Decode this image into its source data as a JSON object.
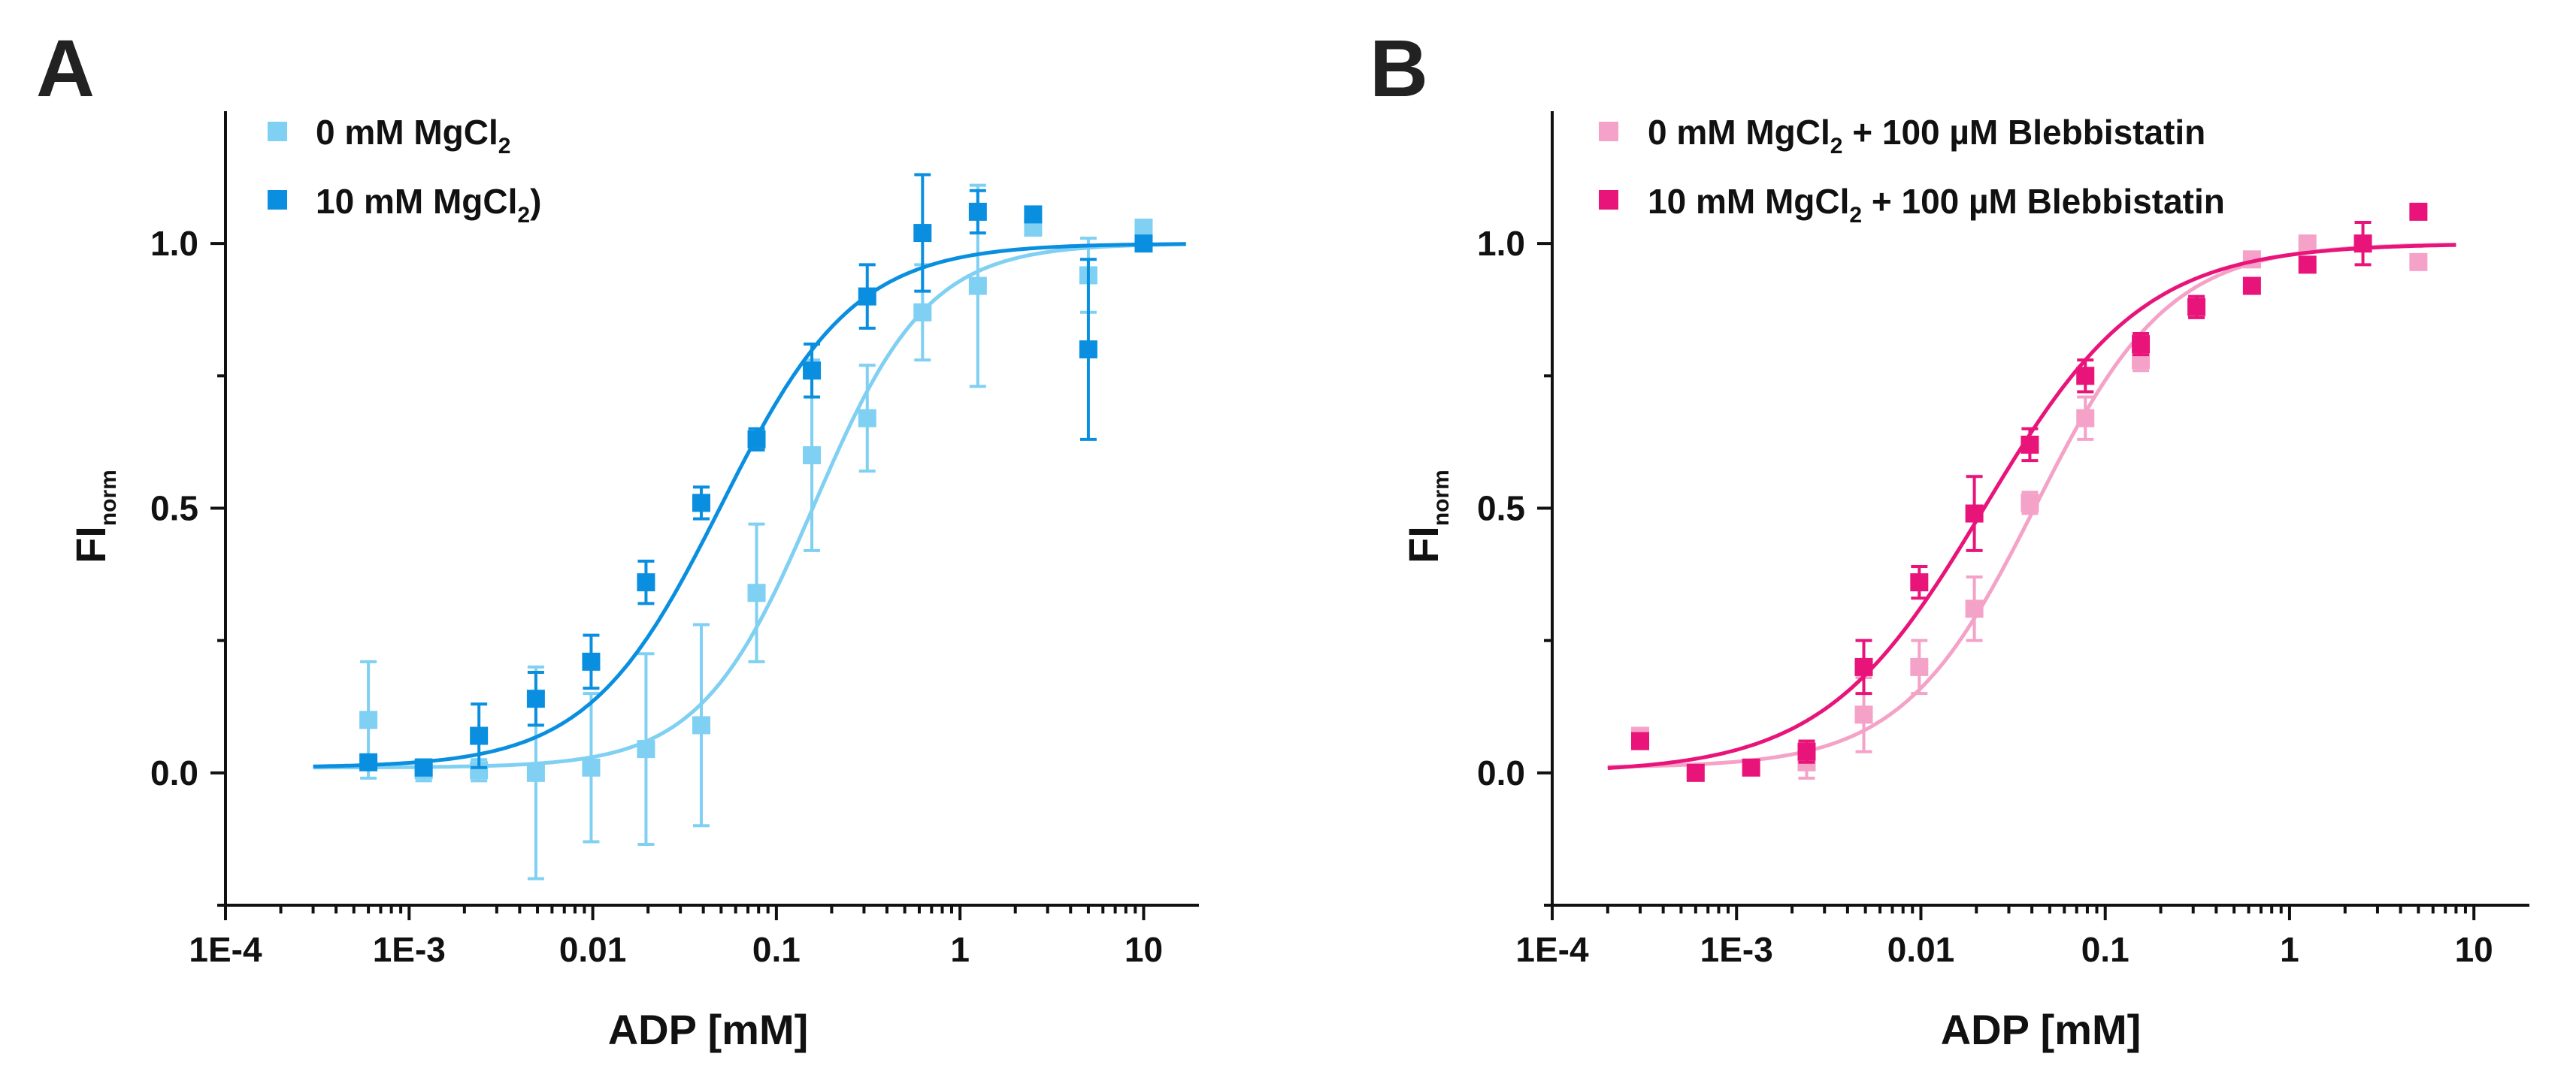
{
  "chart_data": [
    {
      "type": "scatter",
      "panel": "A",
      "xscale": "log",
      "xlim": [
        0.0001,
        20
      ],
      "ylim": [
        -0.25,
        1.25
      ],
      "xlabel": "ADP [mM]",
      "ylabel_main": "FI",
      "ylabel_sub": "norm",
      "xticks": [
        {
          "value": 0.0001,
          "label": "1E-4"
        },
        {
          "value": 0.001,
          "label": "1E-3"
        },
        {
          "value": 0.01,
          "label": "0.01"
        },
        {
          "value": 0.1,
          "label": "0.1"
        },
        {
          "value": 1,
          "label": "1"
        },
        {
          "value": 10,
          "label": "10"
        }
      ],
      "yticks": [
        {
          "value": 0.0,
          "label": "0.0"
        },
        {
          "value": 0.5,
          "label": "0.5"
        },
        {
          "value": 1.0,
          "label": "1.0"
        }
      ],
      "legend_position": "top-left",
      "series": [
        {
          "name": "0 mM MgCl2",
          "legend_parts": [
            "0 mM MgCl",
            "2",
            ""
          ],
          "color": "#7fd0f2",
          "fit": {
            "bottom": 0.01,
            "top": 1.0,
            "ec50": 0.16,
            "hill": 1.4,
            "x_from": 0.0003,
            "x_to": 17
          },
          "points": [
            {
              "x": 0.0006,
              "y": 0.1,
              "err": 0.11
            },
            {
              "x": 0.0012,
              "y": 0.005,
              "err": 0.02
            },
            {
              "x": 0.0024,
              "y": 0.005,
              "err": 0.02
            },
            {
              "x": 0.0049,
              "y": 0.0,
              "err": 0.2
            },
            {
              "x": 0.0098,
              "y": 0.01,
              "err": 0.14
            },
            {
              "x": 0.0195,
              "y": 0.045,
              "err": 0.18
            },
            {
              "x": 0.039,
              "y": 0.09,
              "err": 0.19
            },
            {
              "x": 0.078,
              "y": 0.34,
              "err": 0.13
            },
            {
              "x": 0.156,
              "y": 0.6,
              "err": 0.18
            },
            {
              "x": 0.3125,
              "y": 0.67,
              "err": 0.1
            },
            {
              "x": 0.625,
              "y": 0.87,
              "err": 0.09
            },
            {
              "x": 1.25,
              "y": 0.92,
              "err": 0.19
            },
            {
              "x": 2.5,
              "y": 1.03,
              "err": 0.0
            },
            {
              "x": 5.0,
              "y": 0.94,
              "err": 0.07
            },
            {
              "x": 10.0,
              "y": 1.03,
              "err": 0.0
            }
          ]
        },
        {
          "name": "10 mM MgCl2)",
          "legend_parts": [
            "10 mM MgCl",
            "2",
            ")"
          ],
          "color": "#0a8fe0",
          "fit": {
            "bottom": 0.01,
            "top": 1.0,
            "ec50": 0.05,
            "hill": 1.2,
            "x_from": 0.0003,
            "x_to": 17
          },
          "points": [
            {
              "x": 0.0006,
              "y": 0.02,
              "err": 0.0
            },
            {
              "x": 0.0012,
              "y": 0.01,
              "err": 0.0
            },
            {
              "x": 0.0024,
              "y": 0.07,
              "err": 0.06
            },
            {
              "x": 0.0049,
              "y": 0.14,
              "err": 0.05
            },
            {
              "x": 0.0098,
              "y": 0.21,
              "err": 0.05
            },
            {
              "x": 0.0195,
              "y": 0.36,
              "err": 0.04
            },
            {
              "x": 0.039,
              "y": 0.51,
              "err": 0.03
            },
            {
              "x": 0.078,
              "y": 0.63,
              "err": 0.02
            },
            {
              "x": 0.156,
              "y": 0.76,
              "err": 0.05
            },
            {
              "x": 0.3125,
              "y": 0.9,
              "err": 0.06
            },
            {
              "x": 0.625,
              "y": 1.02,
              "err": 0.11
            },
            {
              "x": 1.25,
              "y": 1.06,
              "err": 0.04
            },
            {
              "x": 2.5,
              "y": 1.055,
              "err": 0.0
            },
            {
              "x": 5.0,
              "y": 0.8,
              "err": 0.17
            },
            {
              "x": 10.0,
              "y": 1.0,
              "err": 0.0
            }
          ]
        }
      ]
    },
    {
      "type": "scatter",
      "panel": "B",
      "xscale": "log",
      "xlim": [
        0.0001,
        20
      ],
      "ylim": [
        -0.25,
        1.25
      ],
      "xlabel": "ADP [mM]",
      "ylabel_main": "FI",
      "ylabel_sub": "norm",
      "xticks": [
        {
          "value": 0.0001,
          "label": "1E-4"
        },
        {
          "value": 0.001,
          "label": "1E-3"
        },
        {
          "value": 0.01,
          "label": "0.01"
        },
        {
          "value": 0.1,
          "label": "0.1"
        },
        {
          "value": 1,
          "label": "1"
        },
        {
          "value": 10,
          "label": "10"
        }
      ],
      "yticks": [
        {
          "value": 0.0,
          "label": "0.0"
        },
        {
          "value": 0.5,
          "label": "0.5"
        },
        {
          "value": 1.0,
          "label": "1.0"
        }
      ],
      "legend_position": "top-left",
      "series": [
        {
          "name": "0 mM MgCl2 + 100 µM Blebbistatin",
          "legend_parts": [
            "0 mM MgCl",
            "2",
            " + 100 µM Blebbistatin"
          ],
          "color": "#f4a2c8",
          "fit": {
            "bottom": 0.01,
            "top": 1.0,
            "ec50": 0.042,
            "hill": 1.2,
            "x_from": 0.0002,
            "x_to": 8
          },
          "points": [
            {
              "x": 0.0003,
              "y": 0.07,
              "err": 0.0
            },
            {
              "x": 0.0024,
              "y": 0.02,
              "err": 0.03
            },
            {
              "x": 0.0049,
              "y": 0.11,
              "err": 0.07
            },
            {
              "x": 0.0098,
              "y": 0.2,
              "err": 0.05
            },
            {
              "x": 0.0195,
              "y": 0.31,
              "err": 0.06
            },
            {
              "x": 0.039,
              "y": 0.51,
              "err": 0.02
            },
            {
              "x": 0.078,
              "y": 0.67,
              "err": 0.04
            },
            {
              "x": 0.156,
              "y": 0.78,
              "err": 0.02
            },
            {
              "x": 0.625,
              "y": 0.97,
              "err": 0.0
            },
            {
              "x": 1.25,
              "y": 1.0,
              "err": 0.0
            },
            {
              "x": 5.0,
              "y": 0.965,
              "err": 0.0
            }
          ]
        },
        {
          "name": "10 mM MgCl2 + 100 µM Blebbistatin",
          "legend_parts": [
            "10 mM MgCl",
            "2",
            " + 100 µM Blebbistatin"
          ],
          "color": "#e8147a",
          "fit": {
            "bottom": 0.0,
            "top": 1.0,
            "ec50": 0.022,
            "hill": 1.0,
            "x_from": 0.0002,
            "x_to": 8
          },
          "points": [
            {
              "x": 0.0003,
              "y": 0.06,
              "err": 0.0
            },
            {
              "x": 0.0006,
              "y": 0.0,
              "err": 0.0
            },
            {
              "x": 0.0012,
              "y": 0.01,
              "err": 0.0
            },
            {
              "x": 0.0024,
              "y": 0.04,
              "err": 0.02
            },
            {
              "x": 0.0049,
              "y": 0.2,
              "err": 0.05
            },
            {
              "x": 0.0098,
              "y": 0.36,
              "err": 0.03
            },
            {
              "x": 0.0195,
              "y": 0.49,
              "err": 0.07
            },
            {
              "x": 0.039,
              "y": 0.62,
              "err": 0.03
            },
            {
              "x": 0.078,
              "y": 0.75,
              "err": 0.03
            },
            {
              "x": 0.156,
              "y": 0.81,
              "err": 0.02
            },
            {
              "x": 0.3125,
              "y": 0.88,
              "err": 0.02
            },
            {
              "x": 0.625,
              "y": 0.92,
              "err": 0.0
            },
            {
              "x": 1.25,
              "y": 0.96,
              "err": 0.0
            },
            {
              "x": 2.5,
              "y": 1.0,
              "err": 0.04
            },
            {
              "x": 5.0,
              "y": 1.06,
              "err": 0.0
            }
          ]
        }
      ]
    }
  ]
}
